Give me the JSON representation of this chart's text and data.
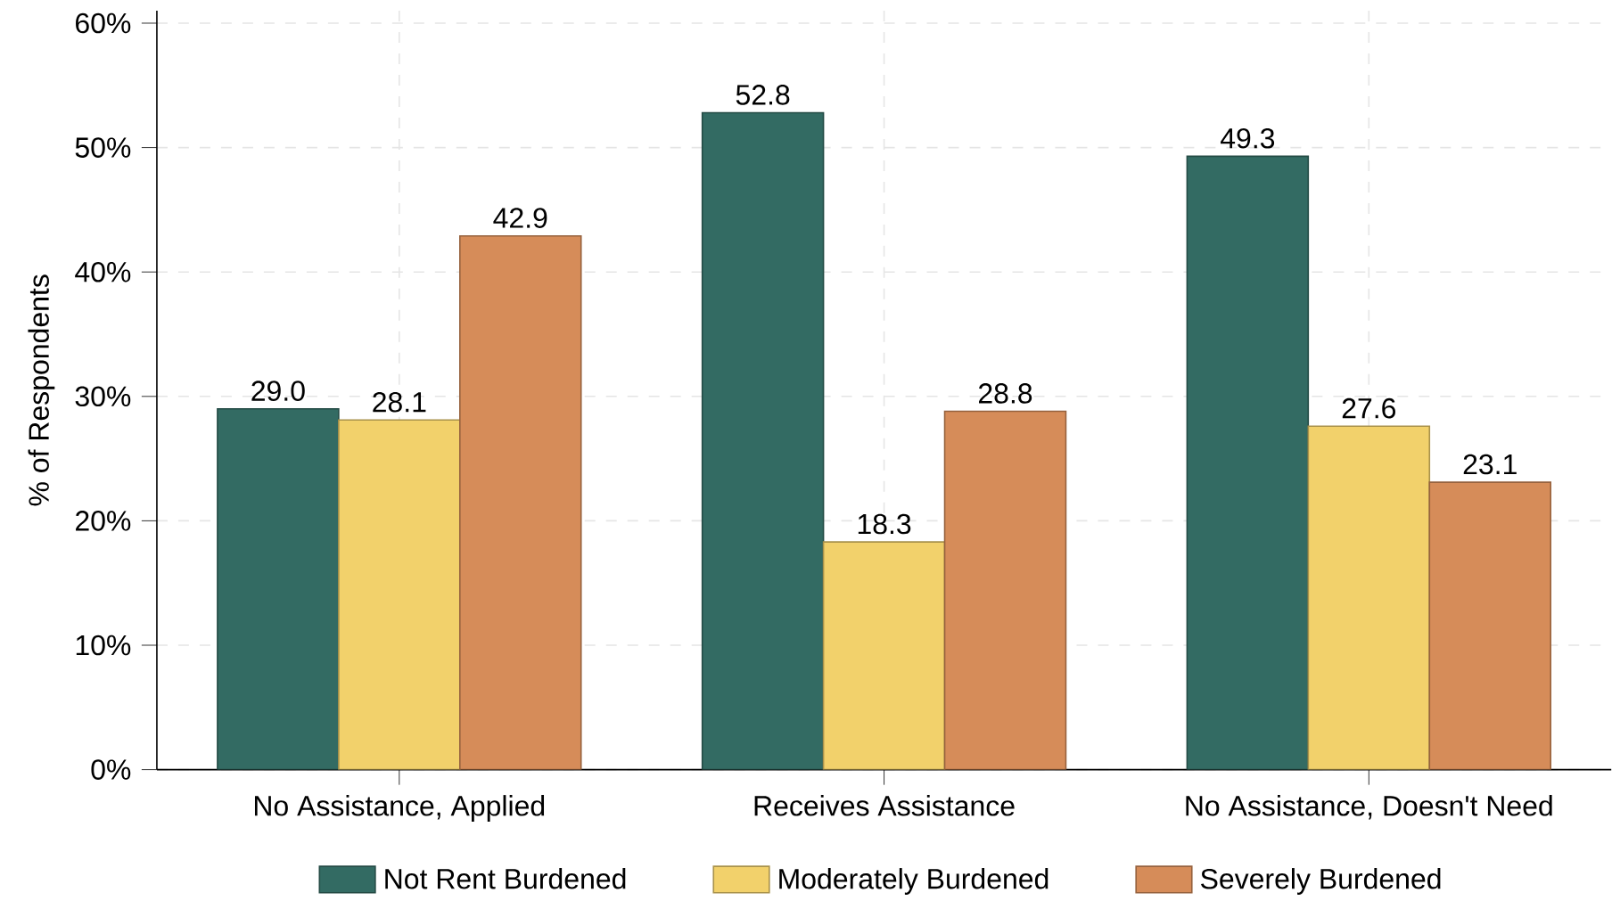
{
  "chart_data": {
    "type": "bar",
    "ylabel": "% of Respondents",
    "categories": [
      "No Assistance, Applied",
      "Receives Assistance",
      "No Assistance, Doesn't Need"
    ],
    "series": [
      {
        "name": "Not Rent Burdened",
        "color": "#336b63",
        "values": [
          29.0,
          52.8,
          49.3
        ],
        "value_labels": [
          "29.0",
          "52.8",
          "49.3"
        ]
      },
      {
        "name": "Moderately Burdened",
        "color": "#f2d16b",
        "values": [
          28.1,
          18.3,
          27.6
        ],
        "value_labels": [
          "28.1",
          "18.3",
          "27.6"
        ]
      },
      {
        "name": "Severely Burdened",
        "color": "#d68c59",
        "values": [
          42.9,
          28.8,
          23.1
        ],
        "value_labels": [
          "42.9",
          "28.8",
          "23.1"
        ]
      }
    ],
    "ylim": [
      0,
      61
    ],
    "yticks": [
      {
        "value": 0,
        "label": "0%"
      },
      {
        "value": 10,
        "label": "10%"
      },
      {
        "value": 20,
        "label": "20%"
      },
      {
        "value": 30,
        "label": "30%"
      },
      {
        "value": 40,
        "label": "40%"
      },
      {
        "value": 50,
        "label": "50%"
      },
      {
        "value": 60,
        "label": "60%"
      }
    ],
    "grid": true,
    "legend": "bottom"
  }
}
